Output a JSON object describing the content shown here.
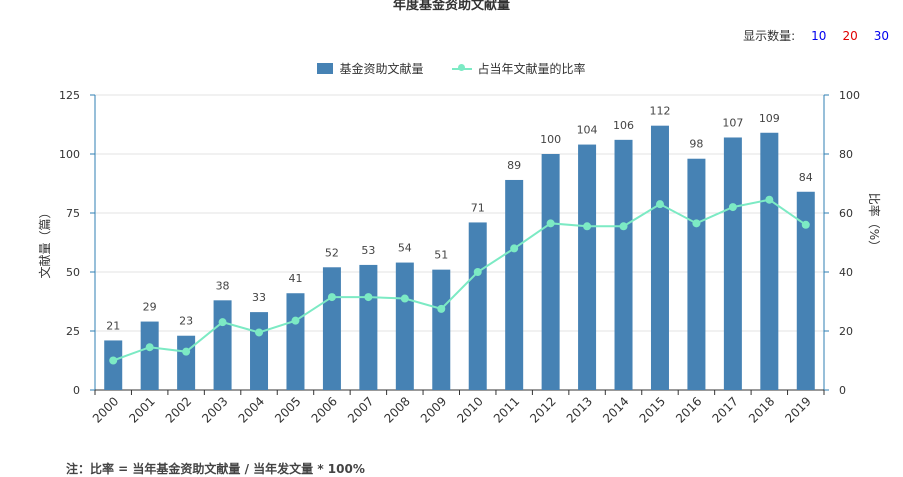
{
  "title": "年度基金资助文献量",
  "count_selector": {
    "label": "显示数量:",
    "options": [
      {
        "label": "10",
        "color": "#0000ee"
      },
      {
        "label": "20",
        "color": "#e00000"
      },
      {
        "label": "30",
        "color": "#0000ee"
      }
    ]
  },
  "note": "注：比率 = 当年基金资助文献量 / 当年发文量 * 100%",
  "colors": {
    "bar": "#4682b4",
    "line": "#7ceac4",
    "axis": "#2f7fb3"
  },
  "chart_data": {
    "type": "bar",
    "categories": [
      "2000",
      "2001",
      "2002",
      "2003",
      "2004",
      "2005",
      "2006",
      "2007",
      "2008",
      "2009",
      "2010",
      "2011",
      "2012",
      "2013",
      "2014",
      "2015",
      "2016",
      "2017",
      "2018",
      "2019"
    ],
    "series": [
      {
        "name": "基金资助文献量",
        "type": "bar",
        "axis": "left",
        "values": [
          21,
          29,
          23,
          38,
          33,
          41,
          52,
          53,
          54,
          51,
          71,
          89,
          100,
          104,
          106,
          112,
          98,
          107,
          109,
          84
        ]
      },
      {
        "name": "占当年文献量的比率",
        "type": "line",
        "axis": "right",
        "values": [
          10,
          14.5,
          13,
          23,
          19.5,
          23.5,
          31.5,
          31.5,
          31,
          27.5,
          40,
          48,
          56.5,
          55.5,
          55.5,
          63,
          56.5,
          62,
          64.5,
          56
        ]
      }
    ],
    "ylabel_left": "文献量（篇）",
    "ylabel_right": "比率（%）",
    "ylim_left": [
      0,
      125
    ],
    "ylim_right": [
      0,
      100
    ],
    "yticks_left": [
      0,
      25,
      50,
      75,
      100,
      125
    ],
    "yticks_right": [
      0,
      20,
      40,
      60,
      80,
      100
    ],
    "grid": true,
    "legend_position": "top-center"
  }
}
